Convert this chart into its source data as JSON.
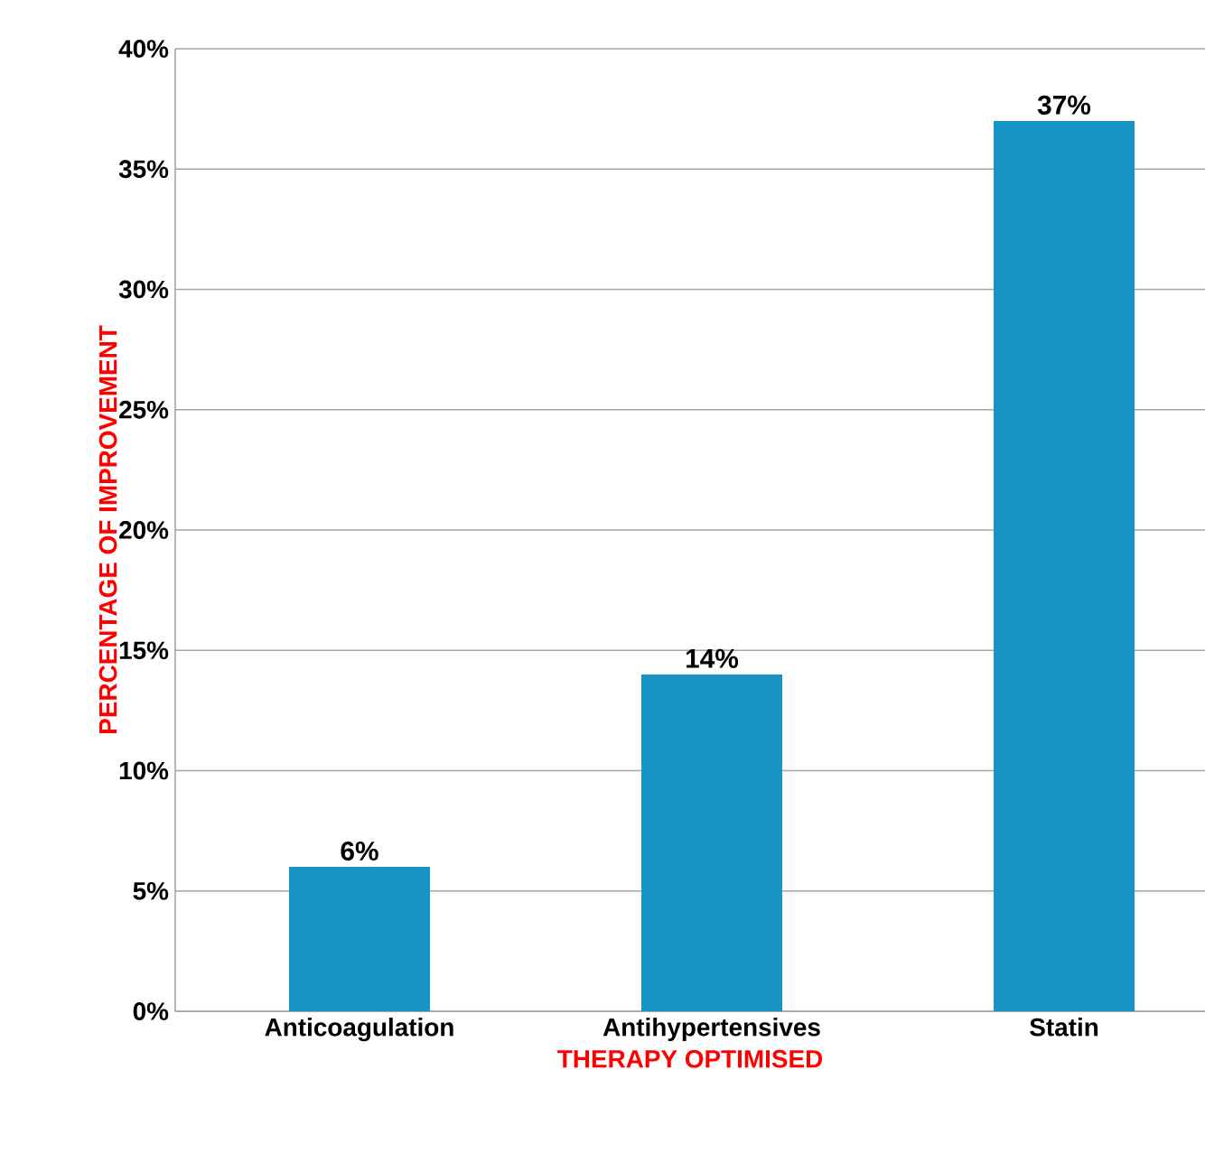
{
  "chart_data": {
    "type": "bar",
    "xlabel": "THERAPY OPTIMISED",
    "ylabel": "PERCENTAGE OF IMPROVEMENT",
    "categories": [
      "Anticoagulation",
      "Antihypertensives",
      "Statin"
    ],
    "values": [
      6,
      14,
      37
    ],
    "value_labels": [
      "6%",
      "14%",
      "37%"
    ],
    "color": "#1793c4",
    "ylim": [
      0,
      40
    ],
    "yticks": [
      {
        "value": 0,
        "label": "0%"
      },
      {
        "value": 5,
        "label": "5%"
      },
      {
        "value": 10,
        "label": "10%"
      },
      {
        "value": 15,
        "label": "15%"
      },
      {
        "value": 20,
        "label": "20%"
      },
      {
        "value": 25,
        "label": "25%"
      },
      {
        "value": 30,
        "label": "30%"
      },
      {
        "value": 35,
        "label": "35%"
      },
      {
        "value": 40,
        "label": "40%"
      }
    ],
    "grid": "y"
  }
}
